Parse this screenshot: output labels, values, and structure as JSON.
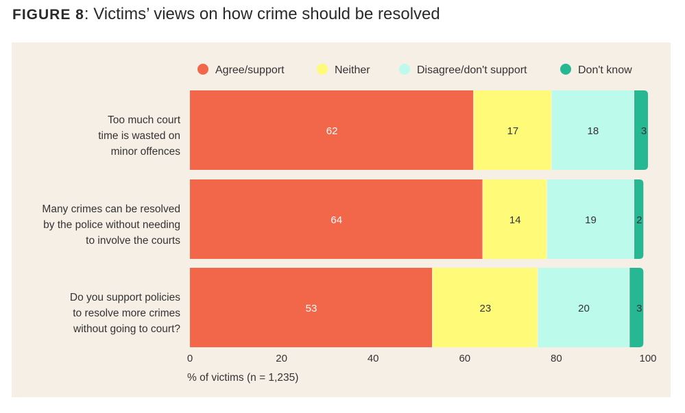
{
  "figure_label": "FIGURE 8",
  "title_text": ": Victims’ views on how crime should be resolved",
  "chart_data": {
    "type": "bar",
    "orientation": "horizontal",
    "stacked": true,
    "title": "FIGURE 8: Victims’ views on how crime should be resolved",
    "categories": [
      [
        "Too much court",
        "time is wasted on",
        "minor offences"
      ],
      [
        "Many crimes can be resolved",
        "by the police without needing",
        "to involve the courts"
      ],
      [
        "Do you support policies",
        "to resolve more crimes",
        "without going to court?"
      ]
    ],
    "series": [
      {
        "name": "Agree/support",
        "color": "#f2674a",
        "values": [
          62,
          64,
          53
        ]
      },
      {
        "name": "Neither",
        "color": "#fffb78",
        "values": [
          17,
          14,
          23
        ]
      },
      {
        "name": "Disagree/don't support",
        "color": "#bcfaeb",
        "values": [
          18,
          19,
          20
        ]
      },
      {
        "name": "Don't know",
        "color": "#26b893",
        "values": [
          3,
          2,
          3
        ]
      }
    ],
    "xlabel": "% of victims  (n = 1,235)",
    "xlim": [
      0,
      100
    ],
    "xticks": [
      0,
      20,
      40,
      60,
      80,
      100
    ],
    "legend_position": "top",
    "grid": false
  }
}
